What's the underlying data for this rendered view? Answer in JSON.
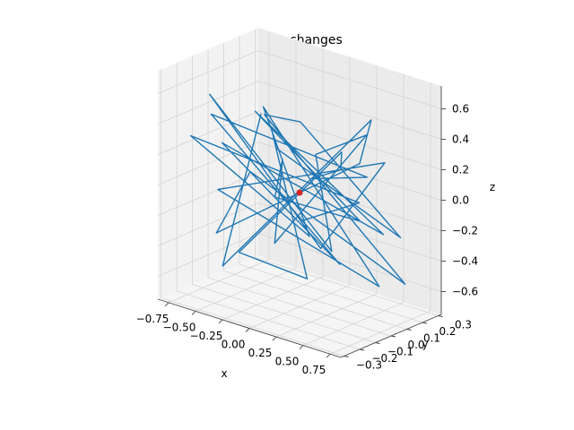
{
  "chart_data": {
    "type": "line",
    "projection": "3d",
    "title": "vector changes",
    "xlabel": "x",
    "ylabel": "y",
    "zlabel": "z",
    "xlim": [
      -0.85,
      0.85
    ],
    "ylim": [
      -0.32,
      0.32
    ],
    "zlim": [
      -0.75,
      0.75
    ],
    "xticks": [
      -0.75,
      -0.5,
      -0.25,
      0.0,
      0.25,
      0.5,
      0.75
    ],
    "xtick_labels": [
      "−0.75",
      "−0.50",
      "−0.25",
      "0.00",
      "0.25",
      "0.50",
      "0.75"
    ],
    "yticks": [
      -0.3,
      -0.2,
      -0.1,
      0.0,
      0.1,
      0.2,
      0.3
    ],
    "ytick_labels": [
      "−0.3",
      "−0.2",
      "−0.1",
      "0.0",
      "0.1",
      "0.2",
      "0.3"
    ],
    "zticks": [
      -0.6,
      -0.4,
      -0.2,
      0.0,
      0.2,
      0.4,
      0.6
    ],
    "ztick_labels": [
      "−0.6",
      "−0.4",
      "−0.2",
      "0.0",
      "0.2",
      "0.4",
      "0.6"
    ],
    "grid": true,
    "line_color": "#1f77b4",
    "marker_color": "#d62728",
    "series": [
      {
        "x": [
          -0.62,
          -0.35,
          0.52,
          0.15,
          -0.7,
          -0.05,
          0.66,
          -0.4,
          0.3,
          0.72,
          -0.58,
          -0.12,
          0.45,
          -0.68,
          0.1,
          0.6,
          -0.3,
          0.7,
          -0.5,
          0.2,
          -0.75,
          0.4,
          -0.15,
          0.68,
          -0.55,
          0.25,
          -0.45,
          0.55,
          -0.2,
          0.62,
          -0.66,
          0.05,
          0.5,
          -0.38,
          0.74,
          -0.6,
          0.18,
          -0.72,
          0.35,
          0.02
        ],
        "y": [
          0.18,
          -0.25,
          0.1,
          0.28,
          -0.05,
          -0.28,
          0.22,
          0.05,
          -0.2,
          0.15,
          0.25,
          -0.1,
          -0.26,
          0.08,
          0.2,
          -0.15,
          0.28,
          -0.05,
          -0.22,
          0.12,
          0.02,
          0.26,
          -0.18,
          -0.08,
          0.22,
          -0.28,
          0.15,
          0.05,
          0.24,
          -0.22,
          -0.12,
          0.1,
          0.2,
          -0.26,
          0.0,
          0.18,
          -0.06,
          -0.2,
          0.14,
          0.0
        ],
        "z": [
          0.3,
          -0.45,
          0.55,
          0.1,
          -0.4,
          0.25,
          -0.55,
          0.4,
          0.62,
          -0.2,
          0.05,
          0.45,
          -0.35,
          -0.58,
          0.2,
          0.35,
          -0.1,
          0.28,
          0.5,
          -0.48,
          0.15,
          -0.3,
          0.58,
          0.0,
          -0.25,
          0.4,
          -0.5,
          0.48,
          0.1,
          -0.15,
          0.55,
          -0.4,
          0.22,
          0.05,
          -0.45,
          0.35,
          -0.22,
          0.3,
          -0.05,
          -0.18
        ]
      }
    ],
    "marker": {
      "x": 0.0,
      "y": 0.0,
      "z": 0.0
    }
  }
}
